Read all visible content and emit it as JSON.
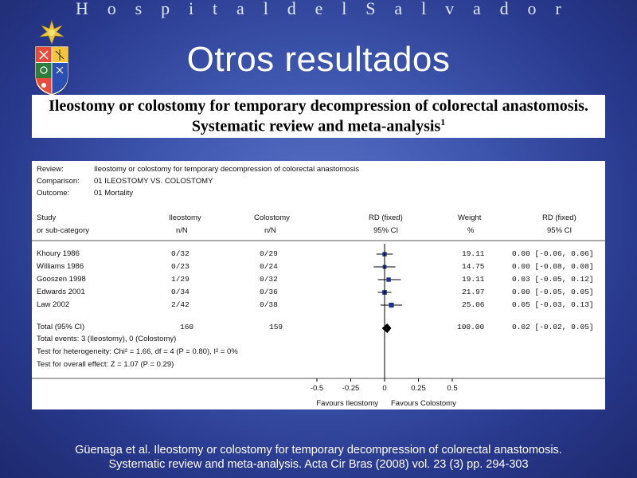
{
  "header": {
    "hospital_letters": [
      "H",
      "o",
      "s",
      "p",
      "i",
      "t",
      "a",
      "l",
      "d",
      "e",
      "l",
      "S",
      "a",
      "l",
      "v",
      "a",
      "d",
      "o",
      "r"
    ]
  },
  "slide": {
    "title": "Otros resultados",
    "paper_title_line1": "Ileostomy or colostomy for temporary decompression of colorectal anastomosis.",
    "paper_title_line2": "Systematic review and meta-analysis",
    "paper_title_sup": "1",
    "citation_line1": "Güenaga et al. Ileostomy or colostomy for temporary decompression of colorectal anastomosis.",
    "citation_line2": "Systematic review and meta-analysis. Acta Cir Bras (2008) vol. 23 (3) pp. 294-303"
  },
  "colors": {
    "marker": "#1f2f8f",
    "diamond": "#000000"
  },
  "chart_data": {
    "type": "forest",
    "meta": {
      "review_label": "Review:",
      "review_value": "Ileostomy or colostomy for temporary decompression of colorectal anastomosis",
      "comparison_label": "Comparison:",
      "comparison_value": "01 ILEOSTOMY VS. COLOSTOMY",
      "outcome_label": "Outcome:",
      "outcome_value": "01 Mortality"
    },
    "columns": {
      "study_1": "Study",
      "study_2": "or sub-category",
      "ileo_1": "Ileostomy",
      "ileo_2": "n/N",
      "colo_1": "Colostomy",
      "colo_2": "n/N",
      "rd_plot_1": "RD (fixed)",
      "rd_plot_2": "95% CI",
      "weight_1": "Weight",
      "weight_2": "%",
      "rd_1": "RD (fixed)",
      "rd_2": "95% CI"
    },
    "studies": [
      {
        "name": "Khoury 1986",
        "ileostomy": "0/32",
        "colostomy": "0/29",
        "weight": "19.11",
        "rd_text": "0.00 [-0.06, 0.06]",
        "rd": 0.0,
        "lo": -0.06,
        "hi": 0.06,
        "w": 19.11
      },
      {
        "name": "Williams 1986",
        "ileostomy": "0/23",
        "colostomy": "0/24",
        "weight": "14.75",
        "rd_text": "0.00 [-0.08, 0.08]",
        "rd": 0.0,
        "lo": -0.08,
        "hi": 0.08,
        "w": 14.75
      },
      {
        "name": "Gooszen 1998",
        "ileostomy": "1/29",
        "colostomy": "0/32",
        "weight": "19.11",
        "rd_text": "0.03 [-0.05, 0.12]",
        "rd": 0.03,
        "lo": -0.05,
        "hi": 0.12,
        "w": 19.11
      },
      {
        "name": "Edwards 2001",
        "ileostomy": "0/34",
        "colostomy": "0/36",
        "weight": "21.97",
        "rd_text": "0.00 [-0.05, 0.05]",
        "rd": 0.0,
        "lo": -0.05,
        "hi": 0.05,
        "w": 21.97
      },
      {
        "name": "Law 2002",
        "ileostomy": "2/42",
        "colostomy": "0/38",
        "weight": "25.06",
        "rd_text": "0.05 [-0.03, 0.13]",
        "rd": 0.05,
        "lo": -0.03,
        "hi": 0.13,
        "w": 25.06
      }
    ],
    "total": {
      "name": "Total (95% CI)",
      "ileostomy": "160",
      "colostomy": "159",
      "weight": "100.00",
      "rd_text": "0.02 [-0.02, 0.05]",
      "rd": 0.02,
      "lo": -0.02,
      "hi": 0.05
    },
    "notes": {
      "events": "Total events: 3 (Ileostomy), 0 (Colostomy)",
      "heterogeneity": "Test for heterogeneity: Chi² = 1.66, df = 4 (P = 0.80), I² = 0%",
      "overall": "Test for overall effect: Z = 1.07 (P = 0.29)"
    },
    "x_axis": {
      "ticks": [
        -0.5,
        -0.25,
        0,
        0.25,
        0.5
      ],
      "tick_labels": [
        "-0.5",
        "-0.25",
        "0",
        "0.25",
        "0.5"
      ],
      "xlim": [
        -0.5,
        0.5
      ],
      "favours_left": "Favours Ileostomy",
      "favours_right": "Favours Colostomy"
    }
  }
}
